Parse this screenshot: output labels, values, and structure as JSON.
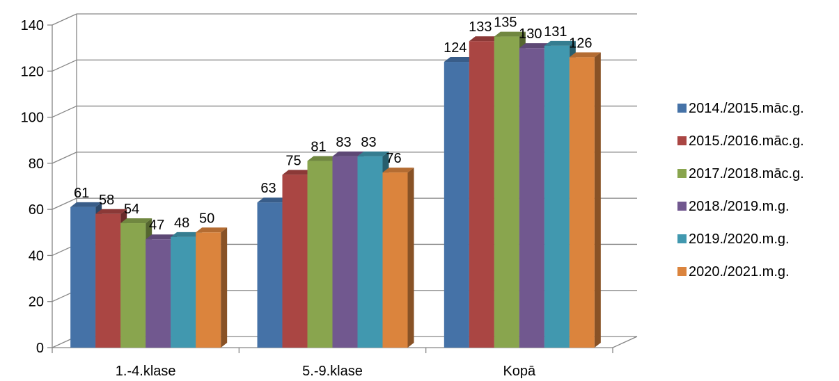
{
  "chart_data": {
    "type": "bar",
    "style": "3d-clustered-column",
    "title": "",
    "xlabel": "",
    "ylabel": "",
    "ylim": [
      0,
      140
    ],
    "yticks": [
      "0",
      "20",
      "40",
      "60",
      "80",
      "100",
      "120",
      "140"
    ],
    "grid": true,
    "legend_position": "right",
    "categories": [
      "1.-4.klase",
      "5.-9.klase",
      "Kopā"
    ],
    "series": [
      {
        "name": "2014./2015.māc.g.",
        "color": "#4572A7",
        "values": [
          61,
          63,
          124
        ]
      },
      {
        "name": "2015./2016.māc.g.",
        "color": "#AA4643",
        "values": [
          58,
          75,
          133
        ]
      },
      {
        "name": "2017./2018.māc.g.",
        "color": "#89A54E",
        "values": [
          54,
          81,
          135
        ]
      },
      {
        "name": "2018./2019.m.g.",
        "color": "#71588F",
        "values": [
          47,
          83,
          130
        ]
      },
      {
        "name": "2019./2020.m.g.",
        "color": "#4198AF",
        "values": [
          48,
          83,
          131
        ]
      },
      {
        "name": "2020./2021.m.g.",
        "color": "#DB843D",
        "values": [
          50,
          76,
          126
        ]
      }
    ]
  }
}
